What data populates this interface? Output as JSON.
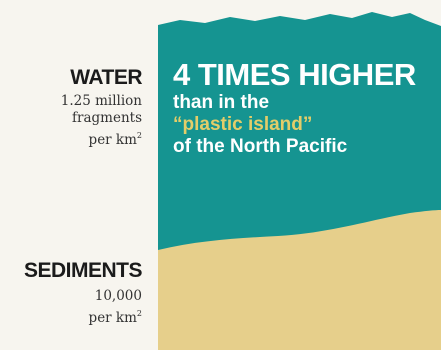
{
  "water": {
    "title": "WATER",
    "lines": [
      "1.25 million",
      "fragments"
    ],
    "unit_prefix": "per km",
    "unit_sup": "2"
  },
  "sediments": {
    "title": "SEDIMENTS",
    "lines": [
      "10,000"
    ],
    "unit_prefix": "per km",
    "unit_sup": "2"
  },
  "headline": {
    "big": "4 TIMES HIGHER",
    "line1": "than in the",
    "highlight": "“plastic island”",
    "line3": "of the North Pacific"
  },
  "colors": {
    "water": "#159491",
    "sediment": "#e6cf8b",
    "background": "#f7f5ef",
    "accent": "#e3cd69",
    "text_dark": "#1b1b1b"
  }
}
